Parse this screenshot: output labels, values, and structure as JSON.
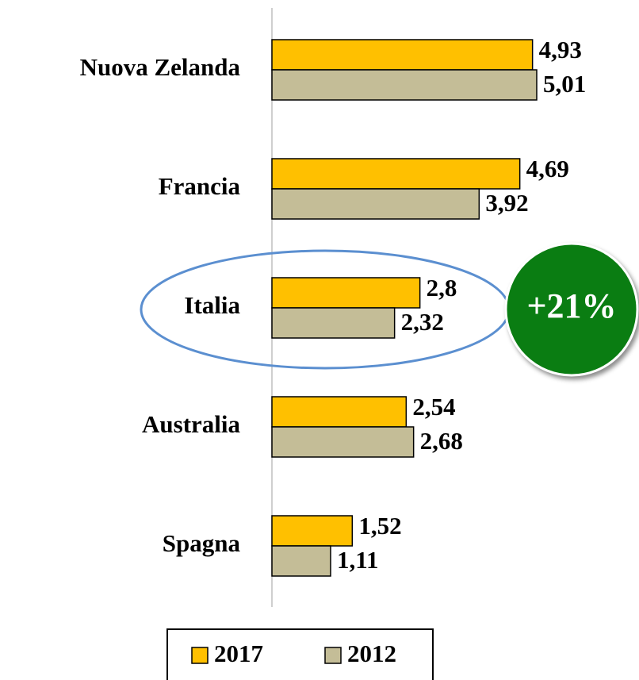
{
  "chart_data": {
    "type": "hbar",
    "categories": [
      "Nuova Zelanda",
      "Francia",
      "Italia",
      "Australia",
      "Spagna"
    ],
    "series": [
      {
        "name": "2017",
        "color": "#FFC000",
        "values": [
          4.93,
          4.69,
          2.8,
          2.54,
          1.52
        ],
        "value_labels": [
          "4,93",
          "4,69",
          "2,8",
          "2,54",
          "1,52"
        ]
      },
      {
        "name": "2012",
        "color": "#C4BD97",
        "values": [
          5.01,
          3.92,
          2.32,
          2.68,
          1.11
        ],
        "value_labels": [
          "5,01",
          "3,92",
          "2,32",
          "2,68",
          "1,11"
        ]
      }
    ],
    "xlim": [
      0,
      6
    ],
    "annotation": "+21%",
    "legend": "bottom"
  }
}
